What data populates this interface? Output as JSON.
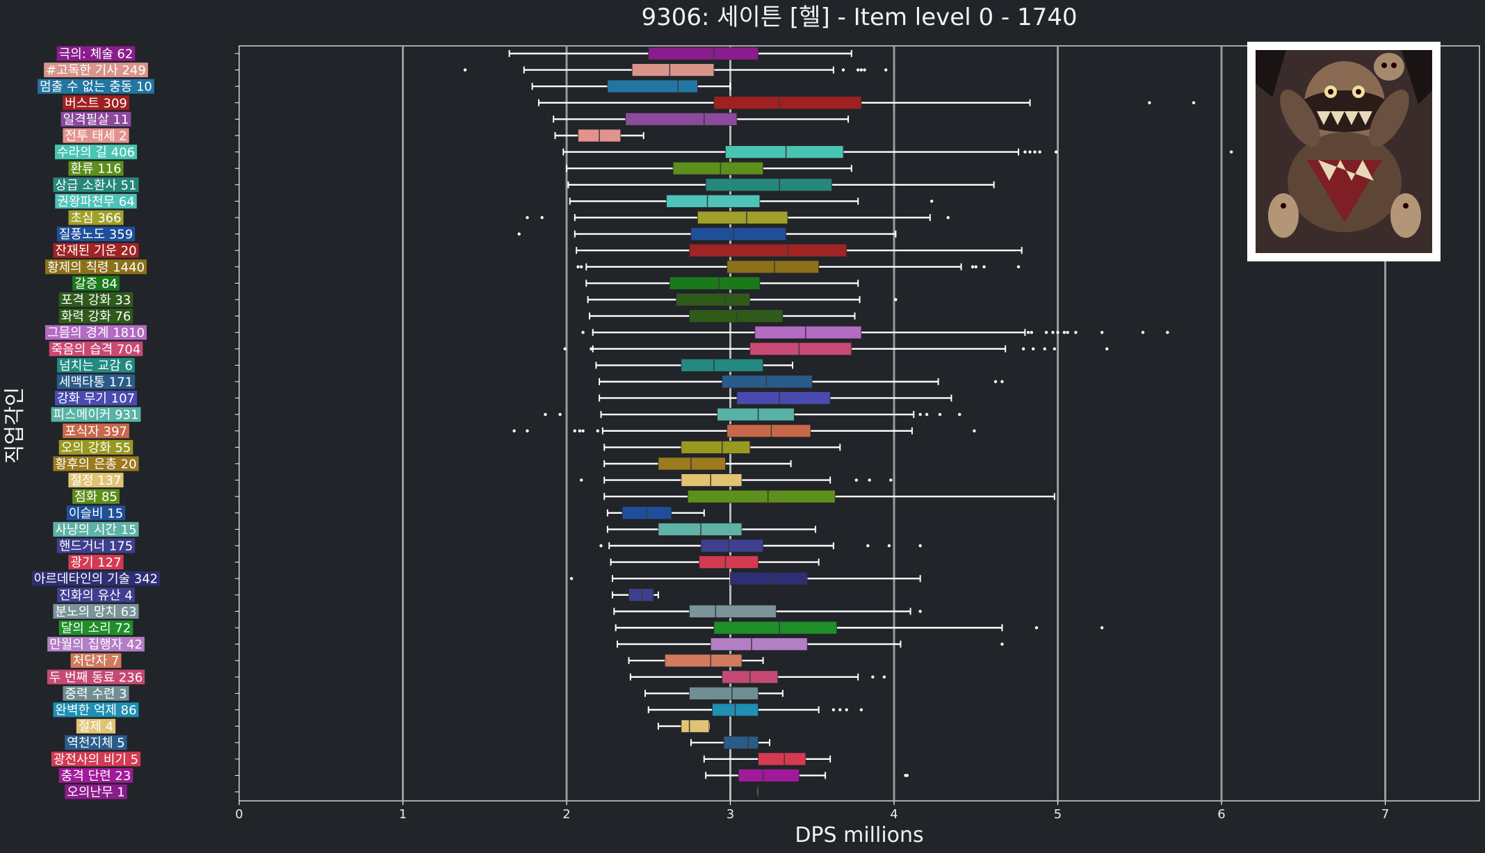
{
  "chart_data": {
    "type": "box",
    "orientation": "horizontal",
    "title": "9306: 세이튼 [헬] - Item level 0 - 1740",
    "xlabel": "DPS millions",
    "ylabel": "직업각인",
    "xlim": [
      0,
      7.55
    ],
    "xticks": [
      0,
      1,
      2,
      3,
      4,
      5,
      6,
      7
    ],
    "median_reference_line": 3.0,
    "grid": "vertical lines at major x ticks",
    "colors": {
      "background": "#212429",
      "axis": "#ffffff",
      "grid": "#9a9a9a",
      "whisker": "#ffffff"
    },
    "boss_image": "boss-portrait",
    "series": [
      {
        "label": "극의: 체술 62",
        "color": "#8b1c8b",
        "stats": {
          "min": 1.65,
          "q1": 2.5,
          "median": 2.9,
          "q3": 3.17,
          "max": 3.74
        },
        "outliers": []
      },
      {
        "label": "#고독한 기사 249",
        "color": "#d9958c",
        "stats": {
          "min": 1.74,
          "q1": 2.4,
          "median": 2.63,
          "q3": 2.9,
          "max": 3.63
        },
        "outliers": [
          1.38,
          3.69,
          3.78,
          3.8,
          3.82,
          3.95
        ]
      },
      {
        "label": "멈출 수 없는 충동 10",
        "color": "#2276a2",
        "stats": {
          "min": 1.79,
          "q1": 2.25,
          "median": 2.68,
          "q3": 2.8,
          "max": 3.0
        },
        "outliers": []
      },
      {
        "label": "버스트 309",
        "color": "#a02020",
        "stats": {
          "min": 1.83,
          "q1": 2.9,
          "median": 3.3,
          "q3": 3.8,
          "max": 4.83
        },
        "outliers": [
          5.56,
          5.83
        ]
      },
      {
        "label": "일격필살 11",
        "color": "#8b4a9c",
        "stats": {
          "min": 1.92,
          "q1": 2.36,
          "median": 2.84,
          "q3": 3.04,
          "max": 3.72
        },
        "outliers": []
      },
      {
        "label": "전투 태세 2",
        "color": "#e3938d",
        "stats": {
          "min": 1.93,
          "q1": 2.07,
          "median": 2.2,
          "q3": 2.33,
          "max": 2.47
        },
        "outliers": []
      },
      {
        "label": "수라의 길 406",
        "color": "#49c4b2",
        "stats": {
          "min": 1.98,
          "q1": 2.97,
          "median": 3.34,
          "q3": 3.69,
          "max": 4.76
        },
        "outliers": [
          4.8,
          4.83,
          4.86,
          4.89,
          4.99,
          6.06
        ]
      },
      {
        "label": "환류 116",
        "color": "#5c8f1c",
        "stats": {
          "min": 2.0,
          "q1": 2.65,
          "median": 2.94,
          "q3": 3.2,
          "max": 3.74
        },
        "outliers": []
      },
      {
        "label": "상급 소환사 51",
        "color": "#26877a",
        "stats": {
          "min": 2.01,
          "q1": 2.85,
          "median": 3.3,
          "q3": 3.62,
          "max": 4.61
        },
        "outliers": []
      },
      {
        "label": "권왕파천무 64",
        "color": "#4ec3b8",
        "stats": {
          "min": 2.02,
          "q1": 2.61,
          "median": 2.86,
          "q3": 3.18,
          "max": 3.78
        },
        "outliers": [
          4.23
        ]
      },
      {
        "label": "초심 366",
        "color": "#a0a02a",
        "stats": {
          "min": 2.05,
          "q1": 2.8,
          "median": 3.1,
          "q3": 3.35,
          "max": 4.22
        },
        "outliers": [
          1.76,
          1.85,
          4.33
        ]
      },
      {
        "label": "질풍노도 359",
        "color": "#1f4f9a",
        "stats": {
          "min": 2.05,
          "q1": 2.76,
          "median": 3.02,
          "q3": 3.34,
          "max": 4.01
        },
        "outliers": [
          1.71
        ]
      },
      {
        "label": "잔재된 기운 20",
        "color": "#a02424",
        "stats": {
          "min": 2.06,
          "q1": 2.75,
          "median": 3.35,
          "q3": 3.71,
          "max": 4.78
        },
        "outliers": []
      },
      {
        "label": "황제의 칙령 1440",
        "color": "#8c7119",
        "stats": {
          "min": 2.12,
          "q1": 2.98,
          "median": 3.27,
          "q3": 3.54,
          "max": 4.41
        },
        "outliers": [
          2.07,
          2.09,
          4.48,
          4.5,
          4.55,
          4.76
        ]
      },
      {
        "label": "갈증 84",
        "color": "#1a7a1a",
        "stats": {
          "min": 2.12,
          "q1": 2.63,
          "median": 2.93,
          "q3": 3.18,
          "max": 3.78
        },
        "outliers": []
      },
      {
        "label": "포격 강화 33",
        "color": "#2f5a1a",
        "stats": {
          "min": 2.13,
          "q1": 2.67,
          "median": 2.97,
          "q3": 3.12,
          "max": 3.79
        },
        "outliers": [
          4.01
        ]
      },
      {
        "label": "화력 강화 76",
        "color": "#2f5a1a",
        "stats": {
          "min": 2.14,
          "q1": 2.75,
          "median": 3.04,
          "q3": 3.32,
          "max": 3.76
        },
        "outliers": []
      },
      {
        "label": "그믐의 경계 1810",
        "color": "#b36bc4",
        "stats": {
          "min": 2.16,
          "q1": 3.15,
          "median": 3.46,
          "q3": 3.8,
          "max": 4.8
        },
        "outliers": [
          2.1,
          4.82,
          4.84,
          4.93,
          4.97,
          5.0,
          5.04,
          5.06,
          5.11,
          5.27,
          5.52,
          5.67
        ]
      },
      {
        "label": "죽음의 습격 704",
        "color": "#c84a74",
        "stats": {
          "min": 2.16,
          "q1": 3.12,
          "median": 3.42,
          "q3": 3.74,
          "max": 4.68
        },
        "outliers": [
          1.99,
          2.15,
          4.79,
          4.85,
          4.92,
          4.98,
          5.3
        ]
      },
      {
        "label": "넘치는 교감 6",
        "color": "#238a82",
        "stats": {
          "min": 2.18,
          "q1": 2.7,
          "median": 2.9,
          "q3": 3.2,
          "max": 3.38
        },
        "outliers": []
      },
      {
        "label": "세맥타통 171",
        "color": "#2a5c8a",
        "stats": {
          "min": 2.2,
          "q1": 2.95,
          "median": 3.22,
          "q3": 3.5,
          "max": 4.27
        },
        "outliers": [
          4.62,
          4.66
        ]
      },
      {
        "label": "강화 무기 107",
        "color": "#4a4ab0",
        "stats": {
          "min": 2.2,
          "q1": 3.04,
          "median": 3.3,
          "q3": 3.61,
          "max": 4.35
        },
        "outliers": []
      },
      {
        "label": "피스메이커 931",
        "color": "#58b3a6",
        "stats": {
          "min": 2.21,
          "q1": 2.92,
          "median": 3.17,
          "q3": 3.39,
          "max": 4.12
        },
        "outliers": [
          1.87,
          1.96,
          4.16,
          4.2,
          4.28,
          4.4
        ]
      },
      {
        "label": "포식자 397",
        "color": "#c8684a",
        "stats": {
          "min": 2.22,
          "q1": 2.98,
          "median": 3.25,
          "q3": 3.49,
          "max": 4.11
        },
        "outliers": [
          1.68,
          1.76,
          2.05,
          2.08,
          2.1,
          2.19,
          4.49
        ]
      },
      {
        "label": "오의 강화 55",
        "color": "#99991f",
        "stats": {
          "min": 2.23,
          "q1": 2.7,
          "median": 2.95,
          "q3": 3.12,
          "max": 3.67
        },
        "outliers": []
      },
      {
        "label": "황후의 은총 20",
        "color": "#9c7a1e",
        "stats": {
          "min": 2.23,
          "q1": 2.56,
          "median": 2.76,
          "q3": 2.97,
          "max": 3.37
        },
        "outliers": []
      },
      {
        "label": "절정 137",
        "color": "#e0c474",
        "stats": {
          "min": 2.23,
          "q1": 2.7,
          "median": 2.88,
          "q3": 3.07,
          "max": 3.61
        },
        "outliers": [
          2.09,
          3.77,
          3.85,
          3.98
        ]
      },
      {
        "label": "점화 85",
        "color": "#5e8f1a",
        "stats": {
          "min": 2.23,
          "q1": 2.74,
          "median": 3.23,
          "q3": 3.64,
          "max": 4.98
        },
        "outliers": []
      },
      {
        "label": "이슬비 15",
        "color": "#1f4f9a",
        "stats": {
          "min": 2.25,
          "q1": 2.34,
          "median": 2.49,
          "q3": 2.64,
          "max": 2.84
        },
        "outliers": []
      },
      {
        "label": "사냥의 시간 15",
        "color": "#5fb3a6",
        "stats": {
          "min": 2.25,
          "q1": 2.56,
          "median": 2.82,
          "q3": 3.07,
          "max": 3.52
        },
        "outliers": []
      },
      {
        "label": "핸드거너 175",
        "color": "#3f3f8f",
        "stats": {
          "min": 2.26,
          "q1": 2.82,
          "median": 2.99,
          "q3": 3.2,
          "max": 3.63
        },
        "outliers": [
          2.21,
          3.84,
          3.97,
          4.16
        ]
      },
      {
        "label": "광기 127",
        "color": "#d43a52",
        "stats": {
          "min": 2.27,
          "q1": 2.81,
          "median": 2.97,
          "q3": 3.17,
          "max": 3.54
        },
        "outliers": []
      },
      {
        "label": "아르데타인의 기술 342",
        "color": "#2e2e73",
        "stats": {
          "min": 2.28,
          "q1": 3.0,
          "median": 3.25,
          "q3": 3.47,
          "max": 4.16
        },
        "outliers": [
          2.03
        ]
      },
      {
        "label": "진화의 유산 4",
        "color": "#3f3f8f",
        "stats": {
          "min": 2.28,
          "q1": 2.38,
          "median": 2.46,
          "q3": 2.53,
          "max": 2.56
        },
        "outliers": []
      },
      {
        "label": "분노의 망치 63",
        "color": "#7a9499",
        "stats": {
          "min": 2.29,
          "q1": 2.75,
          "median": 2.91,
          "q3": 3.28,
          "max": 4.1
        },
        "outliers": [
          4.16
        ]
      },
      {
        "label": "달의 소리 72",
        "color": "#1f8f2a",
        "stats": {
          "min": 2.3,
          "q1": 2.9,
          "median": 3.3,
          "q3": 3.65,
          "max": 4.66
        },
        "outliers": [
          4.87,
          5.27
        ]
      },
      {
        "label": "만월의 집행자 42",
        "color": "#b37ec4",
        "stats": {
          "min": 2.31,
          "q1": 2.88,
          "median": 3.13,
          "q3": 3.47,
          "max": 4.04
        },
        "outliers": [
          4.66
        ]
      },
      {
        "label": "처단자 7",
        "color": "#d07a5e",
        "stats": {
          "min": 2.38,
          "q1": 2.6,
          "median": 2.88,
          "q3": 3.07,
          "max": 3.2
        },
        "outliers": []
      },
      {
        "label": "두 번째 동료 236",
        "color": "#c44a74",
        "stats": {
          "min": 2.39,
          "q1": 2.95,
          "median": 3.12,
          "q3": 3.29,
          "max": 3.78
        },
        "outliers": [
          3.87,
          3.94
        ]
      },
      {
        "label": "중력 수련 3",
        "color": "#6f8f94",
        "stats": {
          "min": 2.48,
          "q1": 2.75,
          "median": 3.01,
          "q3": 3.17,
          "max": 3.32
        },
        "outliers": []
      },
      {
        "label": "완벽한 억제 86",
        "color": "#1f8fb3",
        "stats": {
          "min": 2.5,
          "q1": 2.89,
          "median": 3.03,
          "q3": 3.17,
          "max": 3.54
        },
        "outliers": [
          3.63,
          3.67,
          3.71,
          3.8
        ]
      },
      {
        "label": "절제 4",
        "color": "#e0c474",
        "stats": {
          "min": 2.56,
          "q1": 2.7,
          "median": 2.75,
          "q3": 2.87,
          "max": 2.87
        },
        "outliers": []
      },
      {
        "label": "역천지체 5",
        "color": "#2a5c8a",
        "stats": {
          "min": 2.76,
          "q1": 2.96,
          "median": 3.11,
          "q3": 3.17,
          "max": 3.24
        },
        "outliers": []
      },
      {
        "label": "광전사의 비기 5",
        "color": "#d43a52",
        "stats": {
          "min": 2.84,
          "q1": 3.17,
          "median": 3.33,
          "q3": 3.46,
          "max": 3.61
        },
        "outliers": []
      },
      {
        "label": "충격 단련 23",
        "color": "#a01a9a",
        "stats": {
          "min": 2.85,
          "q1": 3.05,
          "median": 3.2,
          "q3": 3.42,
          "max": 3.58
        },
        "outliers": [
          4.07,
          4.08
        ]
      },
      {
        "label": "오의난무 1",
        "color": "#8b1c8b",
        "stats": {
          "min": 3.17,
          "q1": 3.17,
          "median": 3.17,
          "q3": 3.17,
          "max": 3.17
        },
        "outliers": []
      }
    ]
  }
}
